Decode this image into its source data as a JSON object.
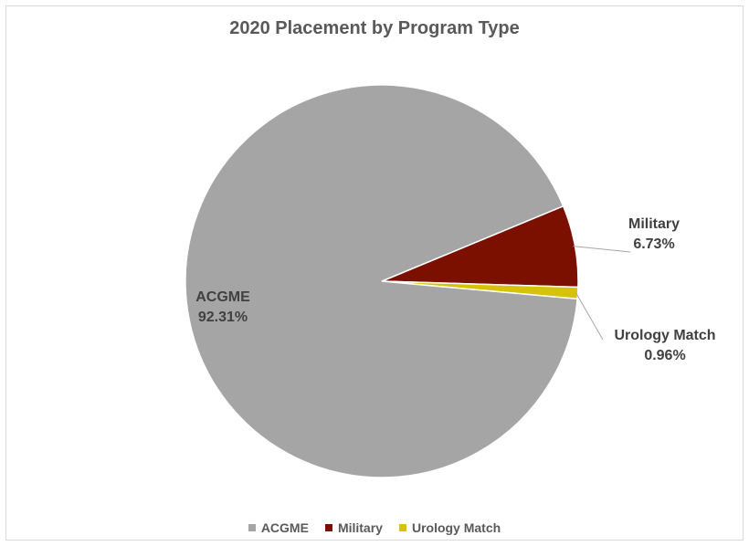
{
  "chart_data": {
    "type": "pie",
    "title": "2020 Placement by Program Type",
    "categories": [
      "ACGME",
      "Military",
      "Urology Match"
    ],
    "values": [
      92.31,
      6.73,
      0.96
    ],
    "unit": "%",
    "data_labels": [
      {
        "name": "ACGME",
        "value": "92.31%"
      },
      {
        "name": "Military",
        "value": "6.73%"
      },
      {
        "name": "Urology Match",
        "value": "0.96%"
      }
    ],
    "colors": [
      "#a5a5a5",
      "#7b0f00",
      "#d6c20a"
    ],
    "legend_position": "bottom"
  }
}
